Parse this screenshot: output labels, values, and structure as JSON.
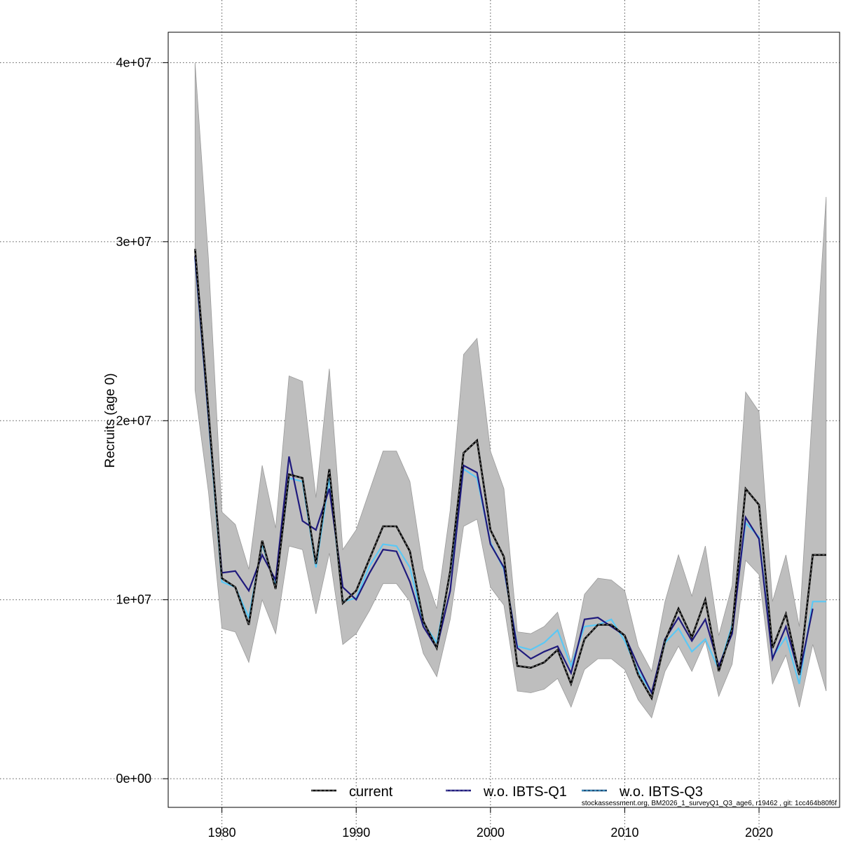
{
  "chart_data": {
    "type": "line",
    "title": "",
    "xlabel": "",
    "ylabel": "Recruits (age 0)",
    "xlim": [
      1976,
      2026
    ],
    "ylim": [
      -1600000,
      41700000
    ],
    "x_ticks": [
      1980,
      1990,
      2000,
      2010,
      2020
    ],
    "x_tick_labels": [
      "1980",
      "1990",
      "2000",
      "2010",
      "2020"
    ],
    "y_ticks": [
      0,
      10000000,
      20000000,
      30000000,
      40000000
    ],
    "y_tick_labels": [
      "0e+00",
      "1e+07",
      "2e+07",
      "3e+07",
      "4e+07"
    ],
    "grid": true,
    "legend_position": "bottom",
    "footer": "stockassessment.org, BM2026_1_surveyQ1_Q3_age6, r19462 , git: 1cc464b80f6f",
    "x": [
      1978,
      1979,
      1980,
      1981,
      1982,
      1983,
      1984,
      1985,
      1986,
      1987,
      1988,
      1989,
      1990,
      1991,
      1992,
      1993,
      1994,
      1995,
      1996,
      1997,
      1998,
      1999,
      2000,
      2001,
      2002,
      2003,
      2004,
      2005,
      2006,
      2007,
      2008,
      2009,
      2010,
      2011,
      2012,
      2013,
      2014,
      2015,
      2016,
      2017,
      2018,
      2019,
      2020,
      2021,
      2022,
      2023,
      2024,
      2025
    ],
    "band": {
      "color": "#bebebe",
      "upper": [
        40000000,
        29000000,
        14900000,
        14200000,
        11700000,
        17500000,
        14000000,
        22500000,
        22200000,
        15700000,
        22900000,
        12800000,
        13900000,
        16100000,
        18300000,
        18300000,
        16600000,
        11700000,
        9500000,
        15000000,
        23700000,
        24600000,
        18300000,
        16200000,
        8200000,
        8100000,
        8500000,
        9300000,
        6500000,
        10300000,
        11200000,
        11100000,
        10500000,
        7400000,
        6000000,
        9900000,
        12500000,
        10200000,
        13000000,
        8000000,
        10800000,
        21600000,
        20500000,
        9900000,
        12500000,
        8500000,
        20900000,
        32500000
      ],
      "lower": [
        21700000,
        16000000,
        8400000,
        8200000,
        6500000,
        10000000,
        8100000,
        13000000,
        12800000,
        9200000,
        12600000,
        7500000,
        8100000,
        9400000,
        10900000,
        10900000,
        9900000,
        7000000,
        5700000,
        8900000,
        14100000,
        14500000,
        10700000,
        9700000,
        4900000,
        4800000,
        5000000,
        5600000,
        4000000,
        6100000,
        6700000,
        6700000,
        6100000,
        4400000,
        3400000,
        6000000,
        7400000,
        6000000,
        7700000,
        4600000,
        6400000,
        12200000,
        11400000,
        5300000,
        6900000,
        4000000,
        7500000,
        4900000
      ]
    },
    "series": [
      {
        "name": "current",
        "color": "#000000",
        "values": [
          29600000,
          20500000,
          11200000,
          10700000,
          8600000,
          13300000,
          10600000,
          17000000,
          16800000,
          12000000,
          17300000,
          9800000,
          10500000,
          12300000,
          14100000,
          14100000,
          12700000,
          8800000,
          7300000,
          11600000,
          18200000,
          18900000,
          13900000,
          12400000,
          6300000,
          6200000,
          6500000,
          7200000,
          5300000,
          7800000,
          8600000,
          8600000,
          8000000,
          5800000,
          4500000,
          7700000,
          9500000,
          7900000,
          10000000,
          6000000,
          8400000,
          16200000,
          15300000,
          7300000,
          9200000,
          5800000,
          12500000,
          12500000
        ]
      },
      {
        "name": "w.o. IBTS-Q1",
        "color": "#1f1a7d",
        "values": [
          29200000,
          20200000,
          11500000,
          11600000,
          10500000,
          12500000,
          11100000,
          18000000,
          14400000,
          13900000,
          16200000,
          10700000,
          10000000,
          11500000,
          12800000,
          12700000,
          11000000,
          8500000,
          7300000,
          10500000,
          17500000,
          17100000,
          13100000,
          11800000,
          7300000,
          6700000,
          7100000,
          7400000,
          5900000,
          8900000,
          9000000,
          8500000,
          8000000,
          6300000,
          4800000,
          7800000,
          9000000,
          7700000,
          8900000,
          6300000,
          8100000,
          14600000,
          13400000,
          6700000,
          8500000,
          5800000,
          9500000,
          null
        ]
      },
      {
        "name": "w.o. IBTS-Q3",
        "color": "#5bc8f5",
        "values": [
          29100000,
          20100000,
          11000000,
          10700000,
          9000000,
          13100000,
          10800000,
          16800000,
          16600000,
          11800000,
          16800000,
          9900000,
          10100000,
          11900000,
          13100000,
          13000000,
          11800000,
          8700000,
          7600000,
          11500000,
          17300000,
          16800000,
          13200000,
          11700000,
          7400000,
          7200000,
          7600000,
          8300000,
          6300000,
          8500000,
          8600000,
          8900000,
          7700000,
          6000000,
          4800000,
          7600000,
          8400000,
          7100000,
          7800000,
          6100000,
          8600000,
          14300000,
          13500000,
          6800000,
          7900000,
          5300000,
          9900000,
          9900000
        ]
      }
    ]
  }
}
